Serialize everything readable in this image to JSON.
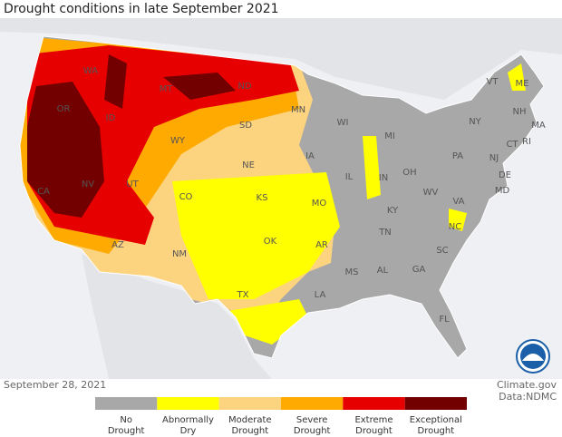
{
  "title": "Drought conditions in late September 2021",
  "date": "September 28, 2021",
  "credits": [
    "Climate.gov",
    "Data:NDMC"
  ],
  "legend": [
    {
      "label": [
        "No",
        "Drought"
      ],
      "color": "#a8a8a8"
    },
    {
      "label": [
        "Abnormally",
        "Dry"
      ],
      "color": "#ffff00"
    },
    {
      "label": [
        "Moderate",
        "Drought"
      ],
      "color": "#fcd37f"
    },
    {
      "label": [
        "Severe",
        "Drought"
      ],
      "color": "#ffaa00"
    },
    {
      "label": [
        "Extreme",
        "Drought"
      ],
      "color": "#e60000"
    },
    {
      "label": [
        "Exceptional",
        "Drought"
      ],
      "color": "#730000"
    }
  ],
  "states": [
    "WA",
    "OR",
    "ID",
    "MT",
    "WY",
    "NV",
    "CA",
    "UT",
    "CO",
    "AZ",
    "NM",
    "ND",
    "SD",
    "NE",
    "KS",
    "OK",
    "TX",
    "MN",
    "IA",
    "MO",
    "AR",
    "LA",
    "WI",
    "IL",
    "MI",
    "IN",
    "OH",
    "KY",
    "TN",
    "MS",
    "AL",
    "GA",
    "FL",
    "SC",
    "NC",
    "VA",
    "WV",
    "PA",
    "NY",
    "VT",
    "NH",
    "ME",
    "MA",
    "CT",
    "RI",
    "NJ",
    "DE",
    "MD"
  ]
}
